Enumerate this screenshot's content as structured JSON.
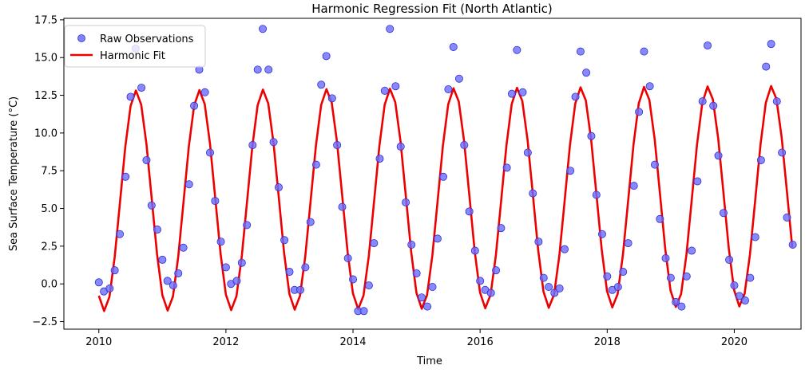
{
  "chart_data": {
    "type": "scatter",
    "title": "Harmonic Regression Fit (North Atlantic)",
    "xlabel": "Time",
    "ylabel": "Sea Surface Temperature (°C)",
    "xlim": [
      2009.45,
      2021.05
    ],
    "ylim": [
      -3.0,
      17.6
    ],
    "xticks": [
      2010,
      2012,
      2014,
      2016,
      2018,
      2020
    ],
    "xtick_labels": [
      "2010",
      "2012",
      "2014",
      "2016",
      "2018",
      "2020"
    ],
    "yticks": [
      -2.5,
      0.0,
      2.5,
      5.0,
      7.5,
      10.0,
      12.5,
      15.0,
      17.5
    ],
    "ytick_labels": [
      "−2.5",
      "0.0",
      "2.5",
      "5.0",
      "7.5",
      "10.0",
      "12.5",
      "15.0",
      "17.5"
    ],
    "grid": false,
    "legend_position": "top-left",
    "colors": {
      "observations": "#6b6bff",
      "observations_edge": "#2f2fd0",
      "fit": "#ee0000"
    },
    "series": [
      {
        "name": "Raw Observations",
        "type": "scatter",
        "x": [
          2010.0,
          2010.08,
          2010.17,
          2010.25,
          2010.33,
          2010.42,
          2010.5,
          2010.58,
          2010.67,
          2010.75,
          2010.83,
          2010.92,
          2011.0,
          2011.08,
          2011.17,
          2011.25,
          2011.33,
          2011.42,
          2011.5,
          2011.58,
          2011.67,
          2011.75,
          2011.83,
          2011.92,
          2012.0,
          2012.08,
          2012.17,
          2012.25,
          2012.33,
          2012.42,
          2012.5,
          2012.58,
          2012.67,
          2012.75,
          2012.83,
          2012.92,
          2013.0,
          2013.08,
          2013.17,
          2013.25,
          2013.33,
          2013.42,
          2013.5,
          2013.58,
          2013.67,
          2013.75,
          2013.83,
          2013.92,
          2014.0,
          2014.08,
          2014.17,
          2014.25,
          2014.33,
          2014.42,
          2014.5,
          2014.58,
          2014.67,
          2014.75,
          2014.83,
          2014.92,
          2015.0,
          2015.08,
          2015.17,
          2015.25,
          2015.33,
          2015.42,
          2015.5,
          2015.58,
          2015.67,
          2015.75,
          2015.83,
          2015.92,
          2016.0,
          2016.08,
          2016.17,
          2016.25,
          2016.33,
          2016.42,
          2016.5,
          2016.58,
          2016.67,
          2016.75,
          2016.83,
          2016.92,
          2017.0,
          2017.08,
          2017.17,
          2017.25,
          2017.33,
          2017.42,
          2017.5,
          2017.58,
          2017.67,
          2017.75,
          2017.83,
          2017.92,
          2018.0,
          2018.08,
          2018.17,
          2018.25,
          2018.33,
          2018.42,
          2018.5,
          2018.58,
          2018.67,
          2018.75,
          2018.83,
          2018.92,
          2019.0,
          2019.08,
          2019.17,
          2019.25,
          2019.33,
          2019.42,
          2019.5,
          2019.58,
          2019.67,
          2019.75,
          2019.83,
          2019.92,
          2020.0,
          2020.08,
          2020.17,
          2020.25,
          2020.33,
          2020.42,
          2020.5,
          2020.58,
          2020.67,
          2020.75,
          2020.83,
          2020.92
        ],
        "y": [
          0.1,
          -0.5,
          -0.3,
          0.9,
          3.3,
          7.1,
          12.4,
          15.6,
          13.0,
          8.2,
          5.2,
          3.6,
          1.6,
          0.2,
          -0.1,
          0.7,
          2.4,
          6.6,
          11.8,
          14.2,
          12.7,
          8.7,
          5.5,
          2.8,
          1.1,
          0.0,
          0.2,
          1.4,
          3.9,
          9.2,
          14.2,
          16.9,
          14.2,
          9.4,
          6.4,
          2.9,
          0.8,
          -0.4,
          -0.4,
          1.1,
          4.1,
          7.9,
          13.2,
          15.1,
          12.3,
          9.2,
          5.1,
          1.7,
          0.3,
          -1.8,
          -1.8,
          -0.1,
          2.7,
          8.3,
          12.8,
          16.9,
          13.1,
          9.1,
          5.4,
          2.6,
          0.7,
          -0.9,
          -1.5,
          -0.2,
          3.0,
          7.1,
          12.9,
          15.7,
          13.6,
          9.2,
          4.8,
          2.2,
          0.2,
          -0.4,
          -0.6,
          0.9,
          3.7,
          7.7,
          12.6,
          15.5,
          12.7,
          8.7,
          6.0,
          2.8,
          0.4,
          -0.2,
          -0.6,
          -0.3,
          2.3,
          7.5,
          12.4,
          15.4,
          14.0,
          9.8,
          5.9,
          3.3,
          0.5,
          -0.4,
          -0.2,
          0.8,
          2.7,
          6.5,
          11.4,
          15.4,
          13.1,
          7.9,
          4.3,
          1.7,
          0.4,
          -1.2,
          -1.5,
          0.5,
          2.2,
          6.8,
          12.1,
          15.8,
          11.8,
          8.5,
          4.7,
          1.6,
          -0.1,
          -0.8,
          -1.1,
          0.4,
          3.1,
          8.2,
          14.4,
          15.9,
          12.1,
          8.7,
          4.4,
          2.6
        ]
      },
      {
        "name": "Harmonic Fit",
        "type": "line",
        "intercept": 5.5,
        "slope_per_year": 0.03,
        "amplitude": 7.3,
        "phase_year_peak": 0.585,
        "x_start": 2010.0,
        "x_end": 2020.92,
        "x_step": 0.0833
      }
    ]
  }
}
